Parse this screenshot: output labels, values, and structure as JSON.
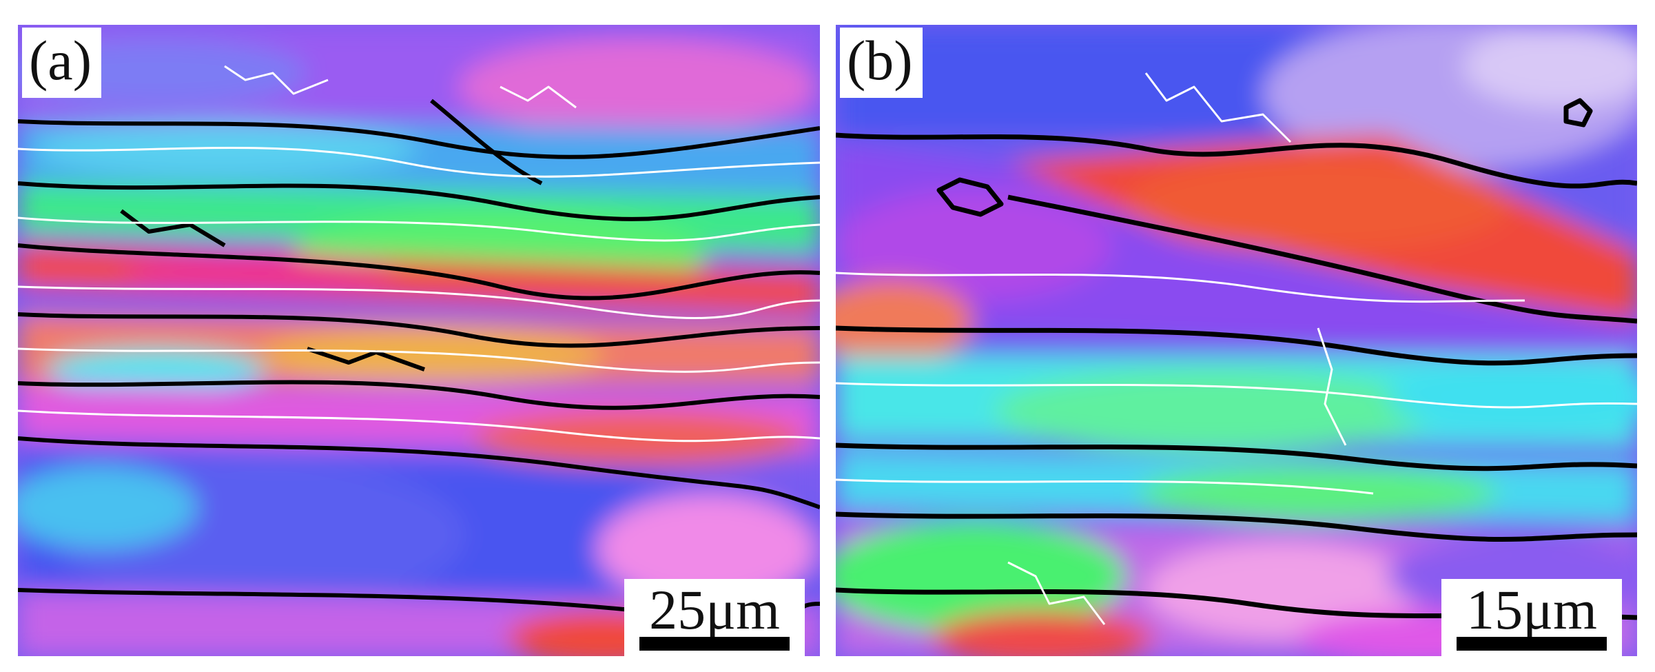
{
  "panels": [
    {
      "label": "(a)",
      "scale_text": "25μm"
    },
    {
      "label": "(b)",
      "scale_text": "15μm"
    }
  ],
  "colors": {
    "background": "#ffffff",
    "grain_boundary_high": "#000000",
    "grain_boundary_low": "#ffffff",
    "ipf_red": "#f2383a",
    "ipf_green": "#38f06a",
    "ipf_blue": "#4a52f2",
    "ipf_cyan": "#48e6f0",
    "ipf_magenta": "#f058e8",
    "ipf_violet": "#8a5cf0"
  }
}
